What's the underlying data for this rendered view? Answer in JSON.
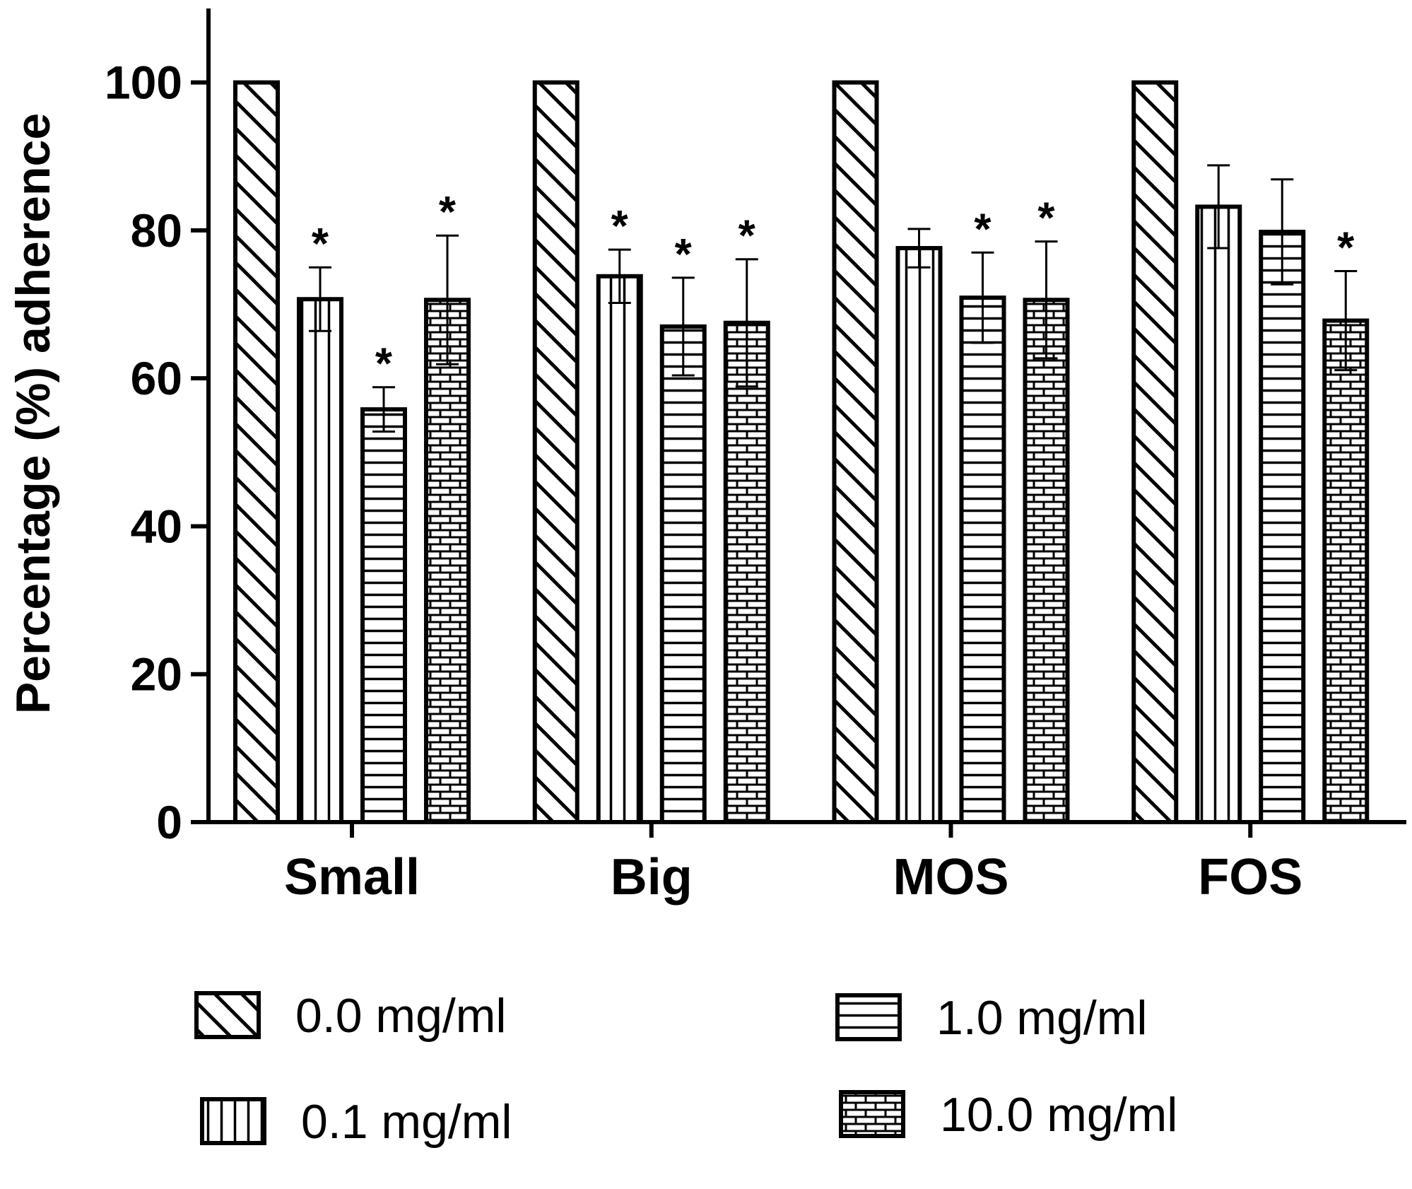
{
  "chart_data": {
    "type": "bar",
    "title": "",
    "xlabel": "",
    "ylabel": "Percentage (%) adherence",
    "ylim": [
      0,
      110
    ],
    "yticks": [
      0,
      20,
      40,
      60,
      80,
      100
    ],
    "categories": [
      "Small",
      "Big",
      "MOS",
      "FOS"
    ],
    "significance_marker": "*",
    "legend_position": "bottom",
    "series": [
      {
        "name": "0.0 mg/ml",
        "pattern": "diagonal",
        "values": [
          100,
          100,
          100,
          100
        ],
        "errors": [
          0,
          0,
          0,
          0
        ],
        "significant": [
          false,
          false,
          false,
          false
        ]
      },
      {
        "name": "0.1 mg/ml",
        "pattern": "vertical",
        "values": [
          70.7,
          73.8,
          77.6,
          83.2
        ],
        "errors": [
          4.3,
          3.6,
          2.6,
          5.6
        ],
        "significant": [
          true,
          true,
          false,
          false
        ]
      },
      {
        "name": "1.0 mg/ml",
        "pattern": "horizontal",
        "values": [
          55.8,
          67.0,
          70.9,
          79.8
        ],
        "errors": [
          3.0,
          6.6,
          6.1,
          7.1
        ],
        "significant": [
          true,
          true,
          true,
          false
        ]
      },
      {
        "name": "10.0 mg/ml",
        "pattern": "brick",
        "values": [
          70.6,
          67.5,
          70.6,
          67.8
        ],
        "errors": [
          8.7,
          8.6,
          7.9,
          6.7
        ],
        "significant": [
          true,
          true,
          true,
          true
        ]
      }
    ]
  }
}
